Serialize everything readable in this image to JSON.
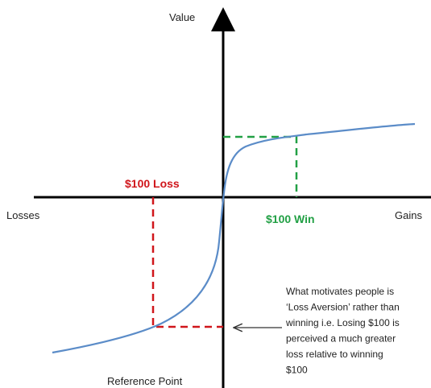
{
  "axes": {
    "y_label": "Value",
    "x_left_label": "Losses",
    "x_right_label": "Gains",
    "origin_label": "Reference Point"
  },
  "markers": {
    "loss": "$100 Loss",
    "win": "$100 Win"
  },
  "annotation": {
    "lines": [
      "What motivates people is",
      "‘Loss Aversion’ rather than",
      "winning i.e. Losing $100 is",
      "perceived a much greater",
      "loss relative to winning",
      "$100"
    ]
  }
}
